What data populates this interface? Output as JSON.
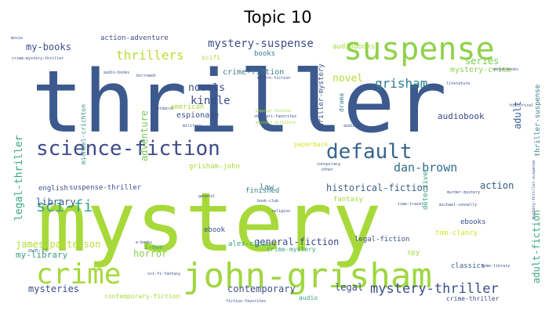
{
  "title": "Topic 10",
  "words": [
    {
      "text": "mystery",
      "color": "#a7d93a"
    },
    {
      "text": "thriller",
      "color": "#3d5a8e"
    },
    {
      "text": "suspense",
      "color": "#8fd24a"
    },
    {
      "text": "john-grisham",
      "color": "#9fd73f"
    },
    {
      "text": "science-fiction",
      "color": "#3f4b8a"
    },
    {
      "text": "default",
      "color": "#35648f"
    },
    {
      "text": "crime",
      "color": "#a6d93a"
    },
    {
      "text": "mystery-thriller",
      "color": "#3a4d87"
    },
    {
      "text": "grisham",
      "color": "#2d7f8e"
    },
    {
      "text": "mystery-suspense",
      "color": "#3d4f88"
    },
    {
      "text": "sci-fi",
      "color": "#3aa48a"
    },
    {
      "text": "thrillers",
      "color": "#b7dd35"
    },
    {
      "text": "dan-brown",
      "color": "#2f6c8e"
    },
    {
      "text": "legal-thriller",
      "color": "#3aa57f"
    },
    {
      "text": "series",
      "color": "#7dcc4c"
    },
    {
      "text": "adventure",
      "color": "#7cc95a"
    },
    {
      "text": "kindle",
      "color": "#3c4d8c"
    },
    {
      "text": "novels",
      "color": "#3b4f8a"
    },
    {
      "text": "novel",
      "color": "#b7dd35"
    },
    {
      "text": "my-books",
      "color": "#3c4e8b"
    },
    {
      "text": "historical-fiction",
      "color": "#3c5f8d"
    },
    {
      "text": "general-fiction",
      "color": "#3c4d8a"
    },
    {
      "text": "action",
      "color": "#3b5b8c"
    },
    {
      "text": "adult",
      "color": "#3d5a8f"
    },
    {
      "text": "adult-fiction",
      "color": "#3aa97e"
    },
    {
      "text": "library",
      "color": "#3c5b8d"
    },
    {
      "text": "contemporary",
      "color": "#3c4f8a"
    },
    {
      "text": "horror",
      "color": "#8bd04d"
    },
    {
      "text": "james-patterson",
      "color": "#b6dd35"
    },
    {
      "text": "my-library",
      "color": "#3c9a88"
    },
    {
      "text": "mysteries",
      "color": "#3c4b88"
    },
    {
      "text": "legal",
      "color": "#3c4e8b"
    },
    {
      "text": "audiobook",
      "color": "#3d4d8a"
    },
    {
      "text": "crime-fiction",
      "color": "#3c7c8e"
    },
    {
      "text": "mystery-crime",
      "color": "#8fd24a"
    },
    {
      "text": "thriller-suspense",
      "color": "#3c7c8e"
    },
    {
      "text": "thriller-mystery",
      "color": "#3d4e8b"
    },
    {
      "text": "action-adventure",
      "color": "#3c4e8b"
    },
    {
      "text": "books",
      "color": "#3c7f8e"
    },
    {
      "text": "audiobooks",
      "color": "#a6d93a"
    },
    {
      "text": "espionage",
      "color": "#3d4e8b"
    },
    {
      "text": "american",
      "color": "#a6d93a"
    },
    {
      "text": "michael-crichton",
      "color": "#3c8e8d"
    },
    {
      "text": "suspense-thriller",
      "color": "#3c4e8b"
    },
    {
      "text": "grisham-john",
      "color": "#a6d93a"
    },
    {
      "text": "law",
      "color": "#3c7f8e"
    },
    {
      "text": "english",
      "color": "#3c4e8b"
    },
    {
      "text": "finished",
      "color": "#3c7f8e"
    },
    {
      "text": "fantasy",
      "color": "#9fd73f"
    },
    {
      "text": "detective",
      "color": "#3aa57f"
    },
    {
      "text": "ebooks",
      "color": "#3c4e8b"
    },
    {
      "text": "ebook",
      "color": "#3c4e8b"
    },
    {
      "text": "alex-cross",
      "color": "#3aa57f"
    },
    {
      "text": "crime-mystery",
      "color": "#3aa57f"
    },
    {
      "text": "legal-fiction",
      "color": "#3c4e8b"
    },
    {
      "text": "spy",
      "color": "#a6d93a"
    },
    {
      "text": "classics",
      "color": "#3c5b8d"
    },
    {
      "text": "tom-clancy",
      "color": "#d5e22a"
    },
    {
      "text": "crime-thriller",
      "color": "#3c4e8b"
    },
    {
      "text": "contemporary-fiction",
      "color": "#a6d93a"
    },
    {
      "text": "audio",
      "color": "#3aa57f"
    },
    {
      "text": "i-own",
      "color": "#3aa57f"
    },
    {
      "text": "own-it",
      "color": "#3c7f8e"
    },
    {
      "text": "paperback",
      "color": "#d5e22a"
    },
    {
      "text": "scifi",
      "color": "#a6d93a"
    },
    {
      "text": "drama",
      "color": "#3c7f8e"
    },
    {
      "text": "movie",
      "color": "#3c4e8b"
    },
    {
      "text": "crime-mystery-thriller",
      "color": "#3c4e8b"
    },
    {
      "text": "audio-books",
      "color": "#3c4e8b"
    },
    {
      "text": "borrowed",
      "color": "#3c4e8b"
    },
    {
      "text": "modern-fiction",
      "color": "#3c4e8b"
    },
    {
      "text": "shelfari-favorites",
      "color": "#3c4e8b"
    },
    {
      "text": "popular-fiction",
      "color": "#a6d93a"
    },
    {
      "text": "mystery-thrillers",
      "color": "#a6d93a"
    },
    {
      "text": "literature",
      "color": "#3c4e8b"
    },
    {
      "text": "mystery-thriller-suspense",
      "color": "#3c4e8b"
    },
    {
      "text": "murder-mystery",
      "color": "#3c4e8b"
    },
    {
      "text": "michael-connelly",
      "color": "#3c4e8b"
    },
    {
      "text": "book-club",
      "color": "#3c4e8b"
    },
    {
      "text": "religion",
      "color": "#3c4e8b"
    },
    {
      "text": "time-travel",
      "color": "#3c4e8b"
    },
    {
      "text": "general",
      "color": "#3c4e8b"
    },
    {
      "text": "sci-fi-fantasy",
      "color": "#3c4e8b"
    },
    {
      "text": "audible",
      "color": "#3c4e8b"
    },
    {
      "text": "military",
      "color": "#3c4e8b"
    },
    {
      "text": "baldacci",
      "color": "#3c4e8b"
    },
    {
      "text": "other",
      "color": "#3c4e8b"
    },
    {
      "text": "e-books",
      "color": "#3c4e8b"
    },
    {
      "text": "home-library",
      "color": "#3c4e8b"
    },
    {
      "text": "historical",
      "color": "#3c4e8b"
    },
    {
      "text": "conspiracy",
      "color": "#3c4e8b"
    },
    {
      "text": "fiction-favorites",
      "color": "#3c4e8b"
    },
    {
      "text": "owned-books",
      "color": "#3c4e8b"
    }
  ]
}
